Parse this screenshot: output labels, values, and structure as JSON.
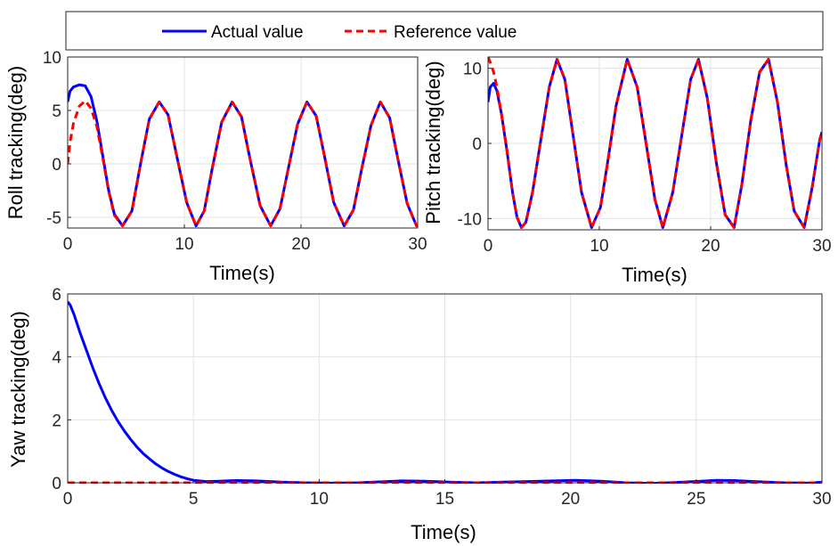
{
  "legend": {
    "actual_label": "Actual value",
    "reference_label": "Reference value"
  },
  "colors": {
    "actual": "#0000ff",
    "reference": "#ff0000",
    "grid": "#e3e3e3",
    "axis": "#262626"
  },
  "chart_data": [
    {
      "type": "line",
      "ylabel": "Roll tracking(deg)",
      "xlabel": "Time(s)",
      "xlim": [
        0,
        30
      ],
      "ylim": [
        -6,
        10
      ],
      "xticks": [
        0,
        10,
        20,
        30
      ],
      "yticks": [
        -5,
        0,
        5,
        10
      ],
      "grid": true,
      "series": [
        {
          "name": "Actual value",
          "style": "solid",
          "x": [
            0,
            0.2,
            0.5,
            1,
            1.5,
            2,
            2.5,
            3,
            3.5,
            4,
            4.7,
            5.5,
            6.3,
            7,
            7.85,
            8.6,
            9.4,
            10.2,
            11,
            11.7,
            12.4,
            13.2,
            14.1,
            14.9,
            15.6,
            16.5,
            17.4,
            18.2,
            18.9,
            19.7,
            20.5,
            21.3,
            22,
            22.8,
            23.7,
            24.5,
            25.2,
            26,
            26.8,
            27.6,
            28.3,
            29.1,
            29.9,
            30
          ],
          "y": [
            5.8,
            6.8,
            7.2,
            7.4,
            7.3,
            6.3,
            4.0,
            0.8,
            -2.4,
            -4.7,
            -5.8,
            -4.4,
            0.3,
            4.2,
            5.8,
            4.6,
            0.5,
            -3.6,
            -5.8,
            -4.4,
            -0.4,
            3.9,
            5.8,
            4.4,
            0.6,
            -3.9,
            -5.8,
            -4.2,
            -0.5,
            3.7,
            5.8,
            4.5,
            0.8,
            -3.6,
            -5.8,
            -4.3,
            -0.5,
            3.6,
            5.8,
            4.3,
            0.5,
            -3.7,
            -5.8,
            -5.7
          ]
        },
        {
          "name": "Reference value",
          "style": "dashed",
          "x": [
            0,
            0.2,
            0.5,
            1,
            1.5,
            2,
            2.5,
            3,
            3.5,
            4,
            4.7,
            5.5,
            6.3,
            7,
            7.85,
            8.6,
            9.4,
            10.2,
            11,
            11.7,
            12.4,
            13.2,
            14.1,
            14.9,
            15.6,
            16.5,
            17.4,
            18.2,
            18.9,
            19.7,
            20.5,
            21.3,
            22,
            22.8,
            23.7,
            24.5,
            25.2,
            26,
            26.8,
            27.6,
            28.3,
            29.1,
            29.9,
            30
          ],
          "y": [
            0.0,
            2.0,
            3.8,
            5.4,
            5.9,
            5.2,
            3.5,
            0.6,
            -2.5,
            -4.8,
            -5.8,
            -4.4,
            0.3,
            4.2,
            5.8,
            4.6,
            0.5,
            -3.6,
            -5.8,
            -4.4,
            -0.4,
            3.9,
            5.8,
            4.4,
            0.6,
            -3.9,
            -5.8,
            -4.2,
            -0.5,
            3.7,
            5.8,
            4.5,
            0.8,
            -3.6,
            -5.8,
            -4.3,
            -0.5,
            3.6,
            5.8,
            4.3,
            0.5,
            -3.7,
            -5.8,
            -5.7
          ]
        }
      ]
    },
    {
      "type": "line",
      "ylabel": "Pitch tracking(deg)",
      "xlabel": "Time(s)",
      "xlim": [
        0,
        30
      ],
      "ylim": [
        -11.5,
        11.5
      ],
      "xticks": [
        0,
        10,
        20,
        30
      ],
      "yticks": [
        -10,
        0,
        10
      ],
      "grid": true,
      "series": [
        {
          "name": "Actual value",
          "style": "solid",
          "x": [
            0,
            0.2,
            0.5,
            0.8,
            1.2,
            1.7,
            2.2,
            2.6,
            3.0,
            3.4,
            4.0,
            4.8,
            5.5,
            6.2,
            6.9,
            7.6,
            8.4,
            9.3,
            10.1,
            10.8,
            11.5,
            12.5,
            13.4,
            14.2,
            15.0,
            15.7,
            16.6,
            17.5,
            18.2,
            18.9,
            19.7,
            20.5,
            21.3,
            22.1,
            22.8,
            23.6,
            24.4,
            25.2,
            26.0,
            26.8,
            27.5,
            28.4,
            29.1,
            29.8,
            30
          ],
          "y": [
            5.5,
            7.5,
            8.0,
            7.0,
            4.0,
            -1.0,
            -6.5,
            -9.8,
            -11.2,
            -10.5,
            -6.5,
            1.0,
            7.5,
            11.2,
            8.5,
            1.5,
            -6.5,
            -11.2,
            -8.5,
            -2.0,
            5.0,
            11.2,
            7.5,
            0.0,
            -7.5,
            -11.2,
            -6.5,
            2.0,
            8.5,
            11.2,
            6.0,
            -2.5,
            -9.5,
            -11.2,
            -5.5,
            3.0,
            9.5,
            11.2,
            5.5,
            -3.0,
            -9.0,
            -11.2,
            -6.0,
            0.5,
            1.5
          ]
        },
        {
          "name": "Reference value",
          "style": "dashed",
          "x": [
            0,
            0.2,
            0.5,
            0.8,
            1.2,
            1.7,
            2.2,
            2.6,
            3.0,
            3.4,
            4.0,
            4.8,
            5.5,
            6.2,
            6.9,
            7.6,
            8.4,
            9.3,
            10.1,
            10.8,
            11.5,
            12.5,
            13.4,
            14.2,
            15.0,
            15.7,
            16.6,
            17.5,
            18.2,
            18.9,
            19.7,
            20.5,
            21.3,
            22.1,
            22.8,
            23.6,
            24.4,
            25.2,
            26.0,
            26.8,
            27.5,
            28.4,
            29.1,
            29.8,
            30
          ],
          "y": [
            11.5,
            10.8,
            9.5,
            7.5,
            4.0,
            -1.0,
            -6.5,
            -9.8,
            -11.2,
            -10.5,
            -6.5,
            1.0,
            7.5,
            11.2,
            8.5,
            1.5,
            -6.5,
            -11.2,
            -8.5,
            -2.0,
            5.0,
            11.2,
            7.5,
            0.0,
            -7.5,
            -11.2,
            -6.5,
            2.0,
            8.5,
            11.2,
            6.0,
            -2.5,
            -9.5,
            -11.2,
            -5.5,
            3.0,
            9.5,
            11.2,
            5.5,
            -3.0,
            -9.0,
            -11.2,
            -6.0,
            0.5,
            1.5
          ]
        }
      ]
    },
    {
      "type": "line",
      "ylabel": "Yaw tracking(deg)",
      "xlabel": "Time(s)",
      "xlim": [
        0,
        30
      ],
      "ylim": [
        0,
        6
      ],
      "xticks": [
        0,
        5,
        10,
        15,
        20,
        25,
        30
      ],
      "yticks": [
        0,
        2,
        4,
        6
      ],
      "grid": true,
      "series": [
        {
          "name": "Actual value",
          "style": "solid",
          "x": [
            0,
            0.1,
            0.25,
            0.5,
            0.75,
            1.0,
            1.25,
            1.5,
            1.75,
            2.0,
            2.25,
            2.5,
            2.75,
            3.0,
            3.25,
            3.5,
            3.75,
            4.0,
            4.25,
            4.5,
            4.75,
            5.0,
            5.5,
            6.0,
            6.7,
            7.5,
            8.5,
            9.5,
            10.5,
            11.5,
            12.5,
            13.3,
            14.2,
            15.2,
            16.3,
            17.3,
            18.3,
            19.3,
            20.2,
            21.2,
            22.2,
            23.2,
            24.2,
            25.2,
            25.8,
            26.5,
            27.5,
            28.5,
            29.5,
            30
          ],
          "y": [
            5.75,
            5.65,
            5.35,
            4.75,
            4.2,
            3.65,
            3.15,
            2.7,
            2.3,
            1.95,
            1.65,
            1.38,
            1.14,
            0.93,
            0.76,
            0.6,
            0.47,
            0.36,
            0.27,
            0.19,
            0.13,
            0.08,
            0.04,
            0.05,
            0.07,
            0.06,
            0.02,
            0.0,
            -0.01,
            0.0,
            0.03,
            0.06,
            0.05,
            0.02,
            0.0,
            0.02,
            0.04,
            0.06,
            0.08,
            0.05,
            0.0,
            -0.02,
            0.01,
            0.05,
            0.08,
            0.07,
            0.03,
            0.0,
            -0.01,
            0.02
          ]
        },
        {
          "name": "Reference value",
          "style": "dashed",
          "x": [
            0,
            30
          ],
          "y": [
            0,
            0
          ]
        }
      ]
    }
  ]
}
